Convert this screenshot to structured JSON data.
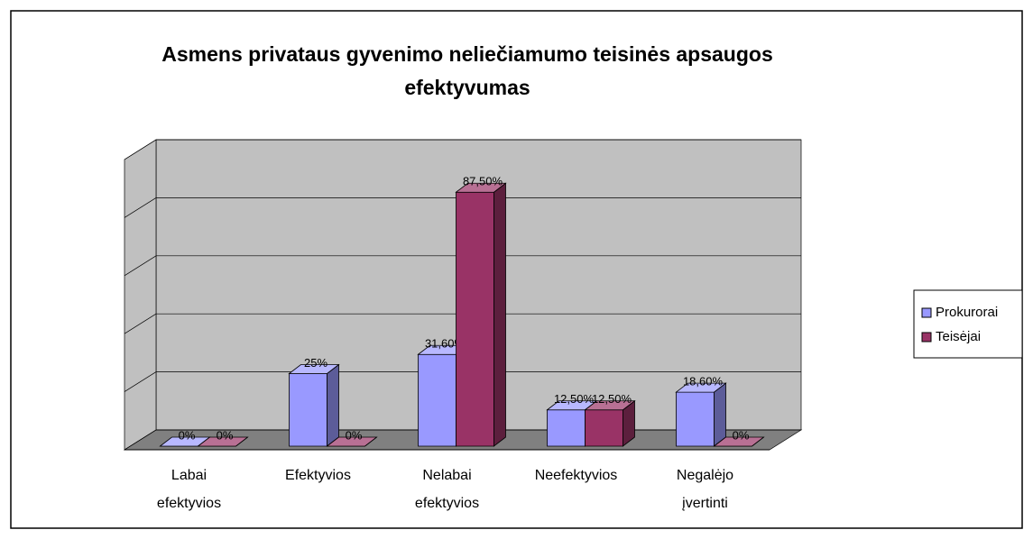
{
  "chart_data": {
    "type": "bar3d",
    "title": "Asmens privataus gyvenimo neliečiamumo teisinės apsaugos efektyvumas",
    "categories": [
      "Labai efektyvios",
      "Efektyvios",
      "Nelabai efektyvios",
      "Neefektyvios",
      "Negalėjo įvertinti"
    ],
    "series": [
      {
        "name": "Prokurorai",
        "color": "#9999ff",
        "values": [
          0,
          25,
          31.6,
          12.5,
          18.6
        ],
        "value_labels": [
          "0%",
          "25%",
          "31,60%",
          "12,50%",
          "18,60%"
        ]
      },
      {
        "name": "Teisėjai",
        "color": "#993366",
        "values": [
          0,
          0,
          87.5,
          12.5,
          0
        ],
        "value_labels": [
          "0%",
          "0%",
          "87,50%",
          "12,50%",
          "0%"
        ]
      }
    ],
    "ylim": [
      0,
      100
    ],
    "yticks": [
      0,
      20,
      40,
      60,
      80,
      100
    ],
    "grid": true,
    "legend": "right"
  }
}
